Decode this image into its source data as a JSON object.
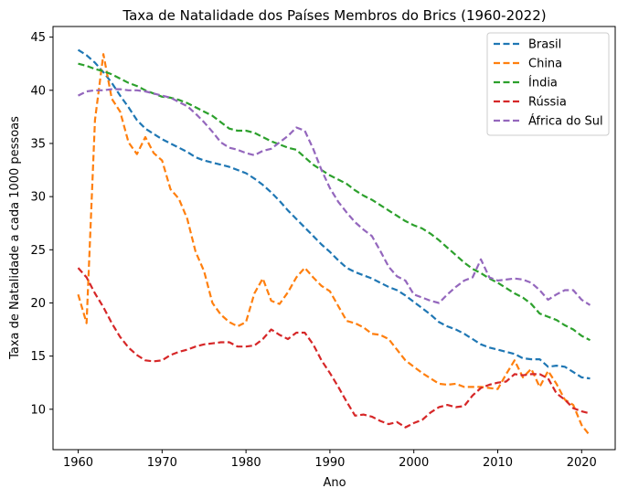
{
  "chart_data": {
    "type": "line",
    "title": "Taxa de Natalidade dos Países Membros do Brics (1960-2022)",
    "xlabel": "Ano",
    "ylabel": "Taxa de Natalidade a cada 1000 pessoas",
    "xlim": [
      1957,
      2024
    ],
    "ylim": [
      6.2,
      46
    ],
    "xticks": [
      1960,
      1970,
      1980,
      1990,
      2000,
      2010,
      2020
    ],
    "yticks": [
      10,
      15,
      20,
      25,
      30,
      35,
      40,
      45
    ],
    "grid": false,
    "legend_position": "top-right",
    "line_style": "dashed",
    "x": [
      1960,
      1961,
      1962,
      1963,
      1964,
      1965,
      1966,
      1967,
      1968,
      1969,
      1970,
      1971,
      1972,
      1973,
      1974,
      1975,
      1976,
      1977,
      1978,
      1979,
      1980,
      1981,
      1982,
      1983,
      1984,
      1985,
      1986,
      1987,
      1988,
      1989,
      1990,
      1991,
      1992,
      1993,
      1994,
      1995,
      1996,
      1997,
      1998,
      1999,
      2000,
      2001,
      2002,
      2003,
      2004,
      2005,
      2006,
      2007,
      2008,
      2009,
      2010,
      2011,
      2012,
      2013,
      2014,
      2015,
      2016,
      2017,
      2018,
      2019,
      2020,
      2021
    ],
    "series": [
      {
        "name": "Brasil",
        "color": "#1f77b4",
        "values": [
          43.8,
          43.3,
          42.6,
          41.7,
          40.7,
          39.5,
          38.4,
          37.2,
          36.4,
          35.9,
          35.4,
          35.0,
          34.6,
          34.2,
          33.7,
          33.4,
          33.2,
          33.0,
          32.8,
          32.5,
          32.2,
          31.7,
          31.1,
          30.4,
          29.6,
          28.7,
          27.9,
          27.1,
          26.3,
          25.5,
          24.8,
          24.0,
          23.3,
          22.9,
          22.6,
          22.3,
          21.9,
          21.5,
          21.2,
          20.7,
          20.1,
          19.5,
          18.9,
          18.2,
          17.8,
          17.5,
          17.1,
          16.6,
          16.1,
          15.8,
          15.6,
          15.4,
          15.2,
          14.8,
          14.7,
          14.7,
          14.0,
          14.1,
          14.0,
          13.5,
          13.0,
          12.9
        ]
      },
      {
        "name": "China",
        "color": "#ff7f0e",
        "values": [
          20.8,
          18.1,
          37.2,
          43.4,
          39.2,
          38.0,
          35.1,
          34.0,
          35.6,
          34.1,
          33.4,
          30.7,
          29.8,
          27.9,
          24.8,
          23.0,
          20.0,
          18.9,
          18.2,
          17.8,
          18.2,
          20.9,
          22.3,
          20.2,
          19.9,
          21.0,
          22.4,
          23.3,
          22.4,
          21.6,
          21.1,
          19.7,
          18.3,
          18.1,
          17.7,
          17.1,
          17.0,
          16.6,
          15.6,
          14.6,
          14.0,
          13.4,
          12.9,
          12.4,
          12.3,
          12.4,
          12.1,
          12.1,
          12.1,
          12.0,
          11.9,
          13.3,
          14.6,
          13.0,
          13.8,
          12.1,
          13.6,
          12.4,
          10.9,
          10.4,
          8.5,
          7.5
        ]
      },
      {
        "name": "Índia",
        "color": "#2ca02c",
        "values": [
          42.5,
          42.3,
          42.0,
          41.8,
          41.5,
          41.1,
          40.7,
          40.4,
          40.0,
          39.7,
          39.4,
          39.3,
          39.1,
          38.8,
          38.4,
          38.0,
          37.6,
          37.0,
          36.4,
          36.2,
          36.2,
          36.0,
          35.6,
          35.2,
          34.9,
          34.6,
          34.4,
          33.7,
          33.0,
          32.5,
          32.0,
          31.6,
          31.2,
          30.6,
          30.1,
          29.7,
          29.2,
          28.7,
          28.2,
          27.7,
          27.3,
          27.0,
          26.5,
          25.9,
          25.2,
          24.5,
          23.8,
          23.2,
          22.8,
          22.3,
          21.9,
          21.4,
          20.9,
          20.5,
          19.9,
          19.0,
          18.7,
          18.4,
          17.9,
          17.5,
          16.9,
          16.5
        ]
      },
      {
        "name": "Rússia",
        "color": "#d62728",
        "values": [
          23.3,
          22.4,
          20.9,
          19.6,
          18.1,
          16.8,
          15.8,
          15.1,
          14.6,
          14.5,
          14.6,
          15.1,
          15.4,
          15.6,
          15.9,
          16.1,
          16.2,
          16.3,
          16.3,
          15.9,
          15.9,
          16.0,
          16.6,
          17.5,
          17.0,
          16.6,
          17.2,
          17.2,
          16.1,
          14.6,
          13.4,
          12.1,
          10.7,
          9.4,
          9.5,
          9.3,
          8.9,
          8.6,
          8.8,
          8.3,
          8.7,
          9.0,
          9.7,
          10.2,
          10.4,
          10.2,
          10.3,
          11.3,
          12.0,
          12.3,
          12.5,
          12.6,
          13.3,
          13.2,
          13.3,
          13.3,
          12.9,
          11.5,
          10.9,
          10.1,
          9.8,
          9.6
        ]
      },
      {
        "name": "África do Sul",
        "color": "#9467bd",
        "values": [
          39.5,
          39.9,
          40.0,
          40.0,
          40.1,
          40.1,
          40.0,
          40.0,
          39.9,
          39.7,
          39.5,
          39.3,
          38.9,
          38.5,
          37.8,
          37.0,
          36.1,
          35.1,
          34.6,
          34.4,
          34.1,
          33.9,
          34.3,
          34.5,
          35.1,
          35.7,
          36.5,
          36.2,
          34.5,
          32.5,
          30.8,
          29.5,
          28.5,
          27.6,
          26.9,
          26.3,
          24.9,
          23.4,
          22.5,
          22.1,
          20.8,
          20.5,
          20.2,
          20.0,
          20.8,
          21.5,
          22.1,
          22.4,
          24.1,
          22.4,
          22.1,
          22.2,
          22.3,
          22.2,
          21.9,
          21.2,
          20.3,
          20.8,
          21.2,
          21.2,
          20.3,
          19.8
        ]
      }
    ]
  }
}
